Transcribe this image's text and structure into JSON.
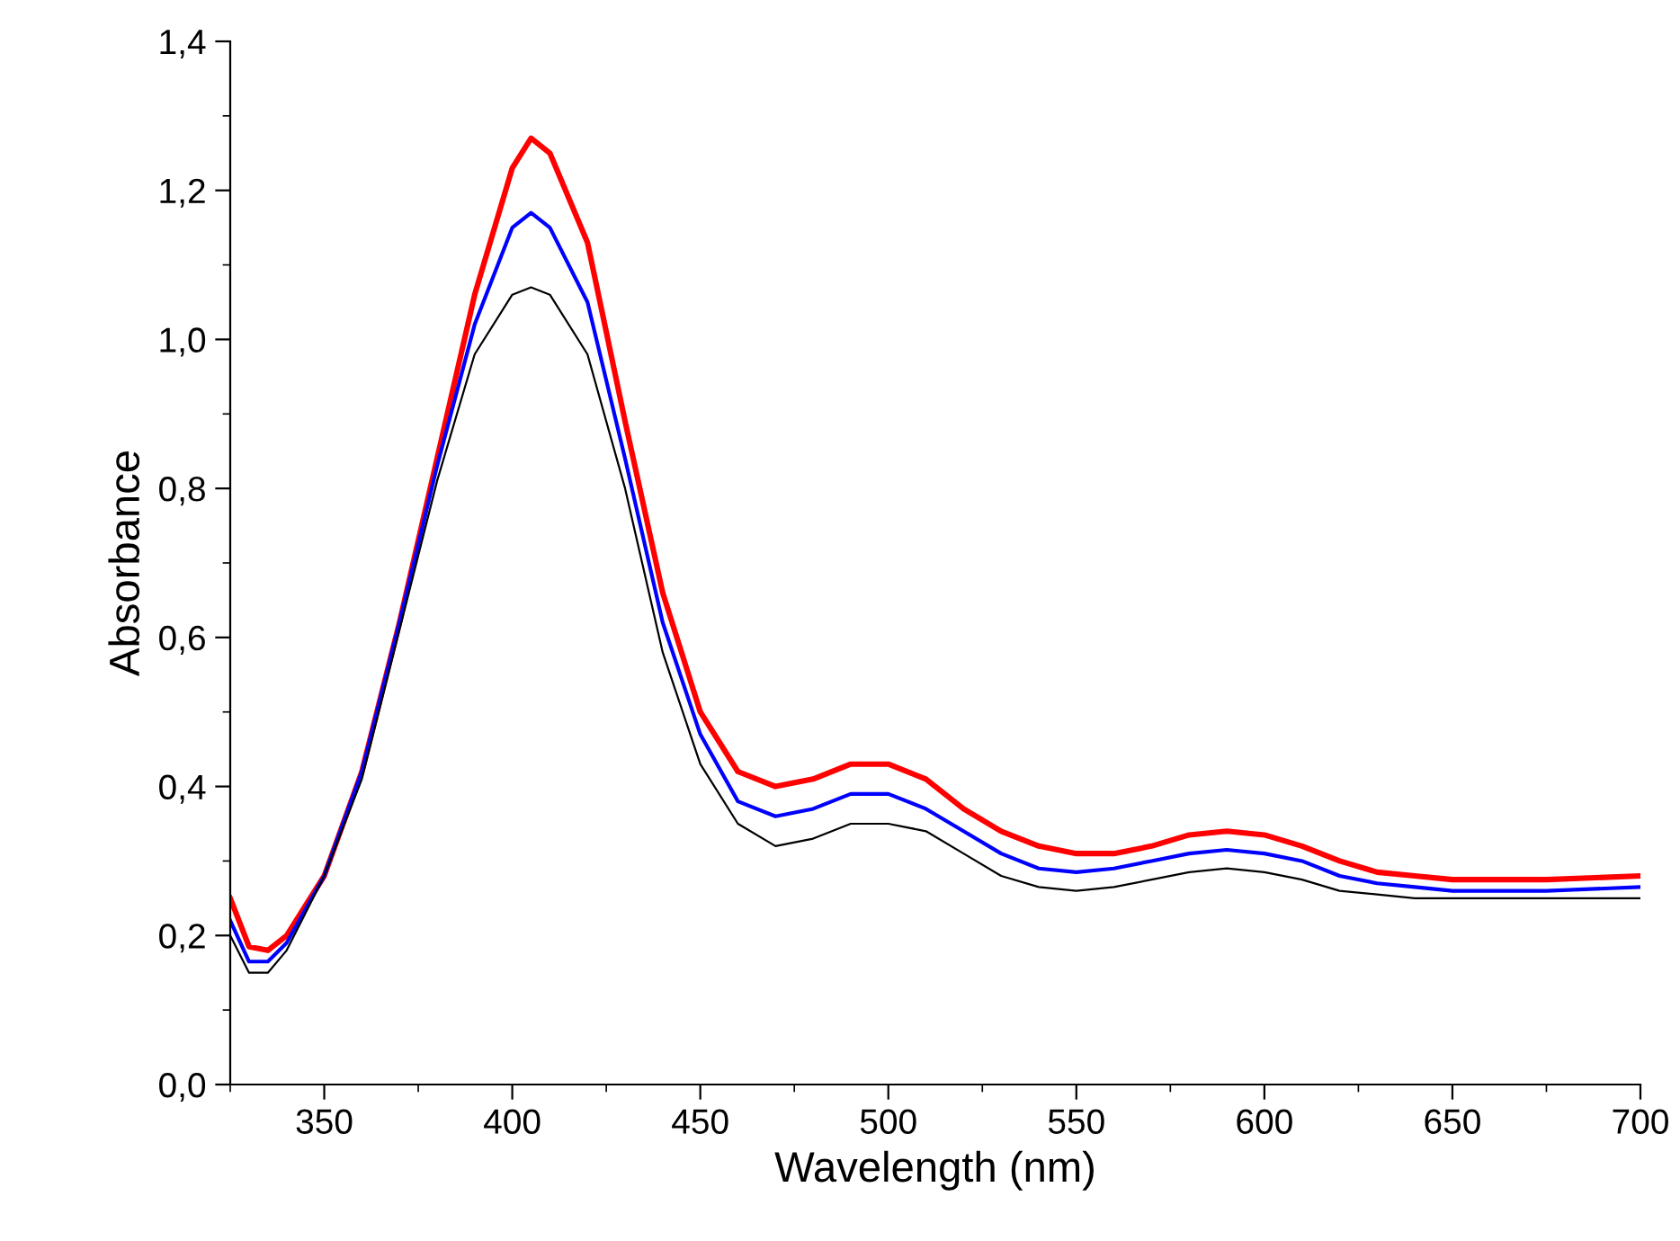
{
  "chart_data": {
    "type": "line",
    "xlabel": "Wavelength (nm)",
    "ylabel": "Absorbance",
    "xlim": [
      325,
      700
    ],
    "ylim": [
      0,
      1.4
    ],
    "xticks": [
      350,
      400,
      450,
      500,
      550,
      600,
      650,
      700
    ],
    "yticks": [
      {
        "value": 0,
        "label": "0,0"
      },
      {
        "value": 0.2,
        "label": "0,2"
      },
      {
        "value": 0.4,
        "label": "0,4"
      },
      {
        "value": 0.6,
        "label": "0,6"
      },
      {
        "value": 0.8,
        "label": "0,8"
      },
      {
        "value": 1.0,
        "label": "1,0"
      },
      {
        "value": 1.2,
        "label": "1,2"
      },
      {
        "value": 1.4,
        "label": "1,4"
      }
    ],
    "grid": false,
    "legend": false,
    "marker": "none",
    "line_style": "solid",
    "x": [
      325,
      330,
      335,
      340,
      350,
      360,
      370,
      380,
      390,
      400,
      405,
      410,
      420,
      430,
      440,
      450,
      460,
      470,
      480,
      490,
      500,
      510,
      520,
      530,
      540,
      550,
      560,
      570,
      580,
      590,
      600,
      610,
      620,
      630,
      640,
      650,
      675,
      700
    ],
    "series": [
      {
        "color": "#ff0000",
        "values": [
          0.25,
          0.185,
          0.18,
          0.2,
          0.28,
          0.42,
          0.62,
          0.84,
          1.06,
          1.23,
          1.27,
          1.25,
          1.13,
          0.89,
          0.66,
          0.5,
          0.42,
          0.4,
          0.41,
          0.43,
          0.43,
          0.41,
          0.37,
          0.34,
          0.32,
          0.31,
          0.31,
          0.32,
          0.335,
          0.34,
          0.335,
          0.32,
          0.3,
          0.285,
          0.28,
          0.275,
          0.275,
          0.28
        ]
      },
      {
        "color": "#0000ff",
        "values": [
          0.22,
          0.165,
          0.165,
          0.19,
          0.28,
          0.42,
          0.62,
          0.83,
          1.02,
          1.15,
          1.17,
          1.15,
          1.05,
          0.84,
          0.62,
          0.47,
          0.38,
          0.36,
          0.37,
          0.39,
          0.39,
          0.37,
          0.34,
          0.31,
          0.29,
          0.285,
          0.29,
          0.3,
          0.31,
          0.315,
          0.31,
          0.3,
          0.28,
          0.27,
          0.265,
          0.26,
          0.26,
          0.265
        ]
      },
      {
        "color": "#000000",
        "values": [
          0.2,
          0.15,
          0.15,
          0.18,
          0.28,
          0.41,
          0.61,
          0.81,
          0.98,
          1.06,
          1.07,
          1.06,
          0.98,
          0.8,
          0.58,
          0.43,
          0.35,
          0.32,
          0.33,
          0.35,
          0.35,
          0.34,
          0.31,
          0.28,
          0.265,
          0.26,
          0.265,
          0.275,
          0.285,
          0.29,
          0.285,
          0.275,
          0.26,
          0.255,
          0.25,
          0.25,
          0.25,
          0.25
        ]
      }
    ]
  }
}
